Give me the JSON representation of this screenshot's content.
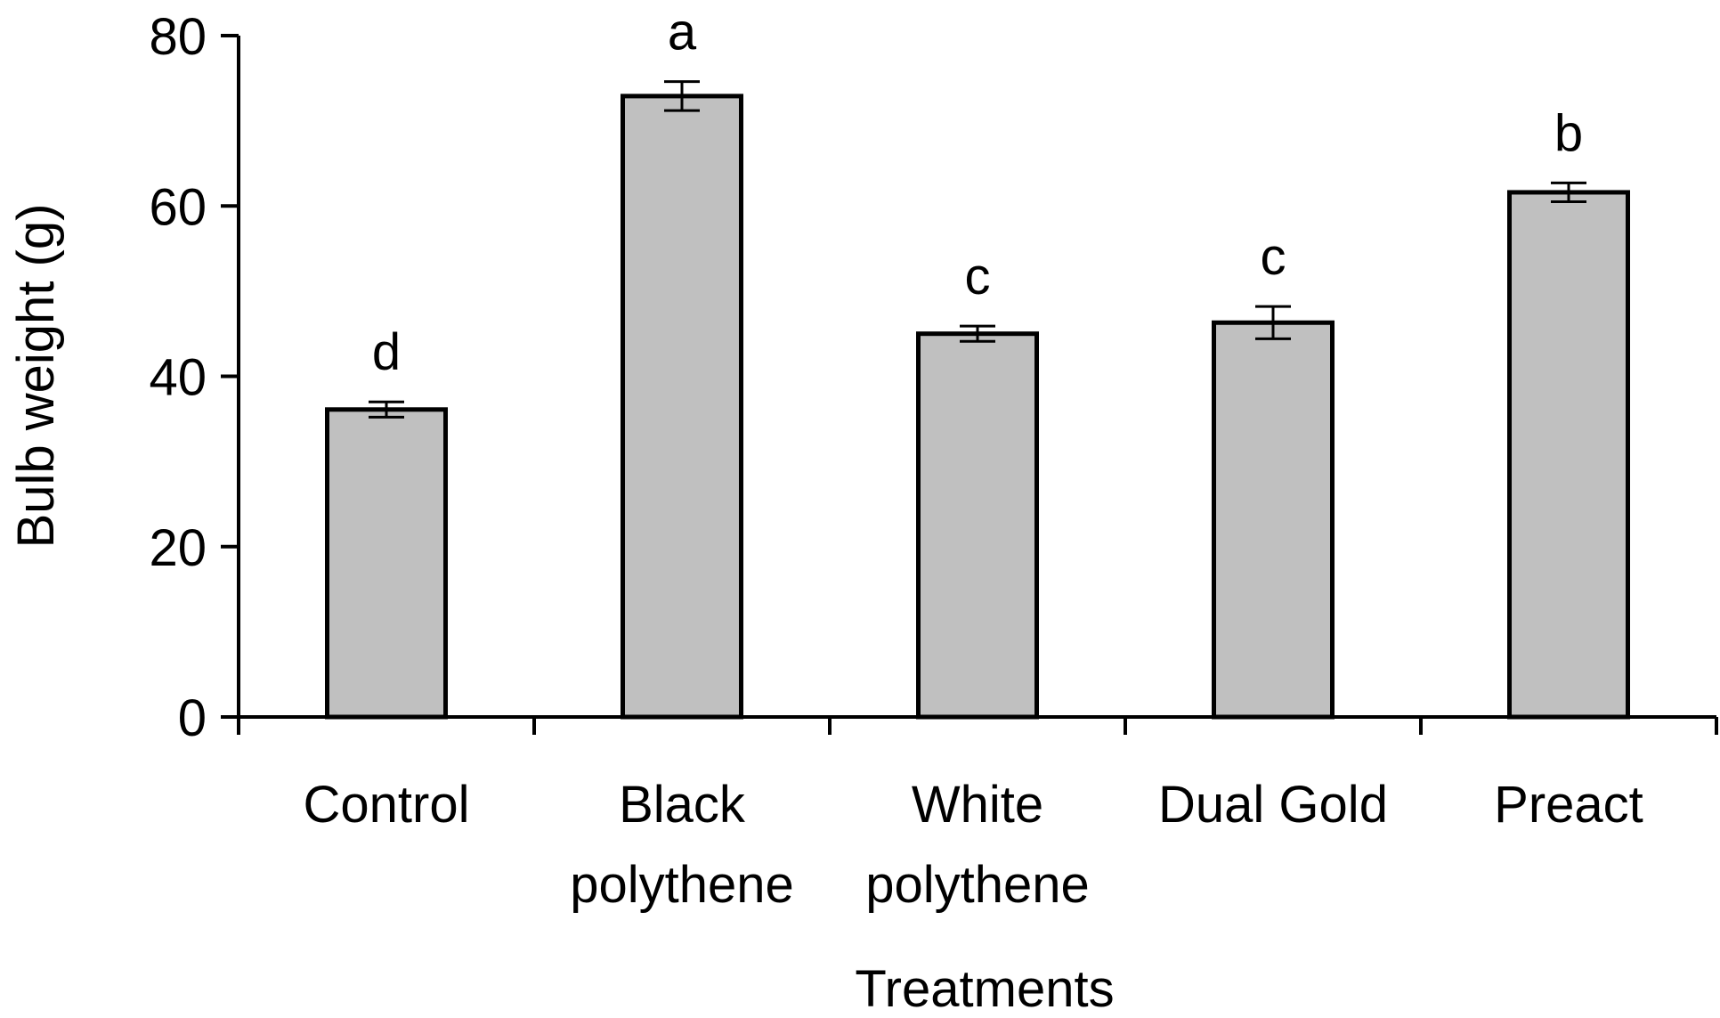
{
  "chart_data": {
    "type": "bar",
    "title": "",
    "xlabel": "Treatments",
    "ylabel": "Bulb weight (g)",
    "ylim": [
      0,
      80
    ],
    "yticks": [
      "0",
      "20",
      "40",
      "60",
      "80"
    ],
    "categories": [
      [
        "Control"
      ],
      [
        "Black",
        "polythene"
      ],
      [
        "White",
        "polythene"
      ],
      [
        "Dual Gold"
      ],
      [
        "Preact"
      ]
    ],
    "values": [
      36.1,
      72.9,
      45.0,
      46.3,
      61.6
    ],
    "errors": [
      0.9,
      1.7,
      0.9,
      1.9,
      1.1
    ],
    "significance_letters": [
      "d",
      "a",
      "c",
      "c",
      "b"
    ],
    "grid": false,
    "legend": "none",
    "colors": {
      "bar_fill": "#c0c0c0",
      "bar_stroke": "#000000",
      "axis": "#000000",
      "text": "#000000"
    }
  }
}
